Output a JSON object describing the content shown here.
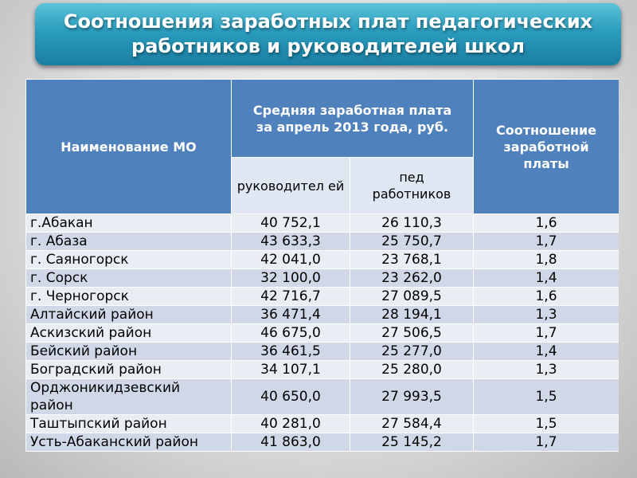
{
  "title": "Соотношения заработных плат педагогических работников и руководителей школ",
  "table": {
    "header": {
      "name_col": "Наименование МО",
      "avg_salary": "Средняя заработная плата за апрель 2013 года, руб.",
      "ratio": "Соотношение заработной платы",
      "sub_managers": "руководител ей",
      "sub_teachers": "пед работников"
    },
    "rows": [
      {
        "name": "г.Абакан",
        "managers": "40 752,1",
        "teachers": "26 110,3",
        "ratio": "1,6"
      },
      {
        "name": "г. Абаза",
        "managers": "43 633,3",
        "teachers": "25 750,7",
        "ratio": "1,7"
      },
      {
        "name": "г. Саяногорск",
        "managers": "42 041,0",
        "teachers": "23 768,1",
        "ratio": "1,8"
      },
      {
        "name": "г. Сорск",
        "managers": "32 100,0",
        "teachers": "23 262,0",
        "ratio": "1,4"
      },
      {
        "name": "г. Черногорск",
        "managers": "42 716,7",
        "teachers": "27 089,5",
        "ratio": "1,6"
      },
      {
        "name": "Алтайский район",
        "managers": "36 471,4",
        "teachers": "28 194,1",
        "ratio": "1,3"
      },
      {
        "name": "Аскизский район",
        "managers": "46 675,0",
        "teachers": "27 506,5",
        "ratio": "1,7"
      },
      {
        "name": "Бейский район",
        "managers": "36 461,5",
        "teachers": "25 277,0",
        "ratio": "1,4"
      },
      {
        "name": "Боградский район",
        "managers": "34 107,1",
        "teachers": "25 280,0",
        "ratio": "1,3"
      },
      {
        "name": "Орджоникидзевский район",
        "managers": "40 650,0",
        "teachers": "27 993,5",
        "ratio": "1,5"
      },
      {
        "name": "Таштыпский район",
        "managers": "40 281,0",
        "teachers": "27 584,4",
        "ratio": "1,5"
      },
      {
        "name": "Усть-Абаканский район",
        "managers": "41 863,0",
        "teachers": "25 145,2",
        "ratio": "1,7"
      }
    ]
  }
}
